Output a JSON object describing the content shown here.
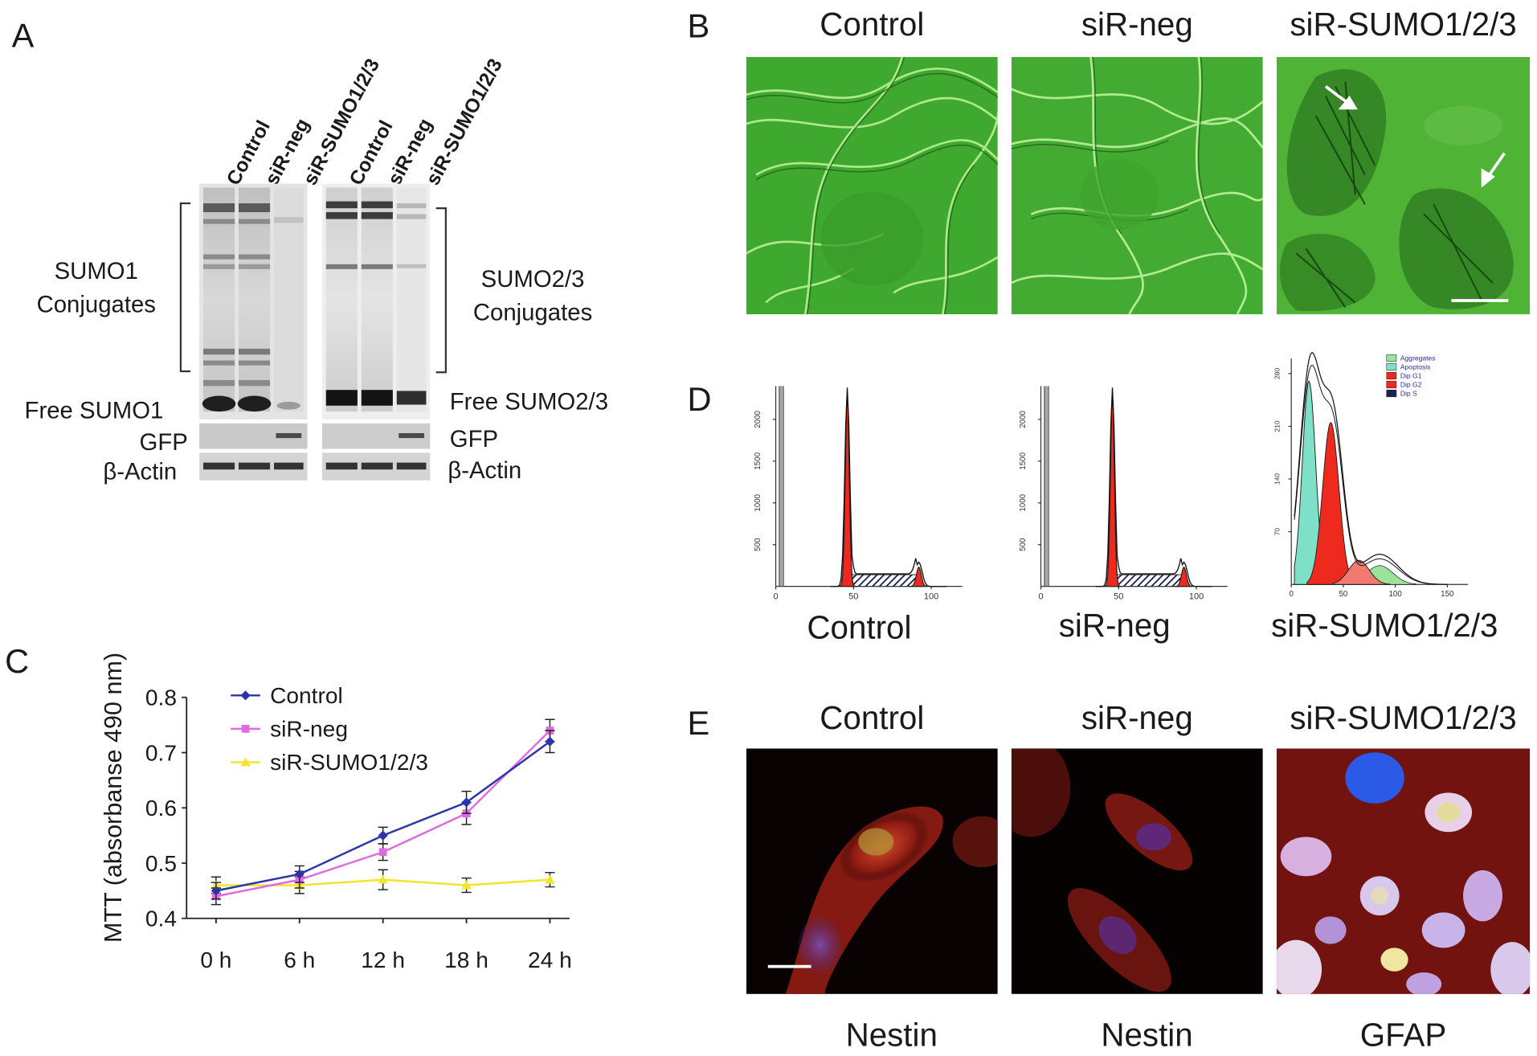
{
  "panel_labels": {
    "a": "A",
    "b": "B",
    "c": "C",
    "d": "D",
    "e": "E"
  },
  "panel_a": {
    "lanes": [
      "Control",
      "siR-neg",
      "siR-SUMO1/2/3",
      "Control",
      "siR-neg",
      "siR-SUMO1/2/3"
    ],
    "left_labels": {
      "conj_line1": "SUMO1",
      "conj_line2": "Conjugates",
      "free": "Free SUMO1",
      "gfp": "GFP",
      "actin": "β-Actin"
    },
    "right_labels": {
      "conj_line1": "SUMO2/3",
      "conj_line2": "Conjugates",
      "free": "Free SUMO2/3",
      "gfp": "GFP",
      "actin": "β-Actin"
    }
  },
  "panel_b": {
    "titles": [
      "Control",
      "siR-neg",
      "siR-SUMO1/2/3"
    ],
    "image_tint": "#3fa82f"
  },
  "panel_d": {
    "captions": [
      "Control",
      "siR-neg",
      "siR-SUMO1/2/3"
    ],
    "legend": [
      "Aggregates",
      "Apoptosis",
      "Dip G1",
      "Dip G2",
      "Dip S"
    ],
    "colors": {
      "aggregates": "#9be39b",
      "apoptosis": "#7fe0c8",
      "g1": "#ee2a1e",
      "g2": "#ee2a1e",
      "s": "#1a2350"
    },
    "histogram_ticks_x": [
      "0",
      "50",
      "100"
    ],
    "histogram_ticks_y": [
      "500",
      "1000",
      "1500",
      "2000"
    ],
    "third_ticks_x": [
      "0",
      "50",
      "100",
      "150"
    ],
    "third_ticks_y": [
      "70",
      "140",
      "210",
      "280"
    ]
  },
  "panel_e": {
    "titles": [
      "Control",
      "siR-neg",
      "siR-SUMO1/2/3"
    ],
    "captions": [
      "Nestin",
      "Nestin",
      "GFAP"
    ]
  },
  "chart_data": {
    "type": "line",
    "categories": [
      "0 h",
      "6 h",
      "12 h",
      "18 h",
      "24 h"
    ],
    "series": [
      {
        "name": "Control",
        "color": "#2b35a8",
        "marker": "diamond",
        "values": [
          0.45,
          0.48,
          0.55,
          0.61,
          0.72
        ],
        "errors": [
          0.015,
          0.015,
          0.015,
          0.02,
          0.02
        ]
      },
      {
        "name": "siR-neg",
        "color": "#e06ae0",
        "marker": "square",
        "values": [
          0.44,
          0.47,
          0.52,
          0.59,
          0.74
        ],
        "errors": [
          0.015,
          0.015,
          0.015,
          0.02,
          0.02
        ]
      },
      {
        "name": "siR-SUMO1/2/3",
        "color": "#f2e52a",
        "marker": "triangle",
        "values": [
          0.46,
          0.46,
          0.47,
          0.46,
          0.47
        ],
        "errors": [
          0.015,
          0.015,
          0.018,
          0.013,
          0.013
        ]
      }
    ],
    "ylabel": "MTT (absorbanse 490 nm)",
    "ylim": [
      0.4,
      0.8
    ],
    "yticks": [
      "0.4",
      "0.5",
      "0.6",
      "0.7",
      "0.8"
    ],
    "legend_position": "top-left"
  }
}
